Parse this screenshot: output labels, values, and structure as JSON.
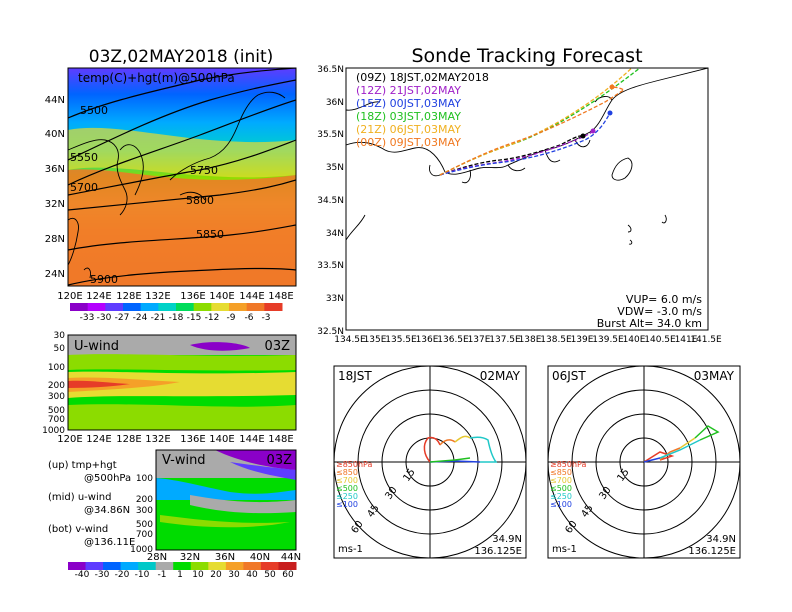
{
  "left_panel": {
    "title": "03Z,02MAY2018 (init)",
    "map_label": "temp(C)+hgt(m)@500hPa",
    "lat_labels": [
      "44N",
      "40N",
      "36N",
      "32N",
      "28N",
      "24N"
    ],
    "lon_labels": [
      "120E",
      "124E",
      "128E",
      "132E",
      "136E",
      "140E",
      "144E",
      "148E"
    ],
    "contour_labels": [
      "5500",
      "5550",
      "5700",
      "5750",
      "5800",
      "5850",
      "5900"
    ],
    "colorbar_labels": [
      "-33",
      "-30",
      "-27",
      "-24",
      "-21",
      "-18",
      "-15",
      "-12",
      "-9",
      "-6",
      "-3"
    ],
    "colorbar_colors": [
      "#8a00c8",
      "#b400ff",
      "#5f3cff",
      "#0064ff",
      "#00aaff",
      "#00d2c8",
      "#00dc5a",
      "#8cdc00",
      "#e6dc32",
      "#f5a028",
      "#f07828",
      "#e63c28"
    ]
  },
  "uwind": {
    "label": "U-wind",
    "time": "03Z",
    "p_labels": [
      "30",
      "50",
      "100",
      "200",
      "300",
      "500",
      "700",
      "1000"
    ],
    "lon_labels": [
      "120E",
      "124E",
      "128E",
      "132E",
      "136E",
      "140E",
      "144E",
      "148E"
    ]
  },
  "vwind": {
    "label": "V-wind",
    "time": "03Z",
    "p_labels": [
      "100",
      "200",
      "300",
      "500",
      "700",
      "1000"
    ],
    "lat_labels": [
      "28N",
      "32N",
      "36N",
      "40N",
      "44N"
    ]
  },
  "legend_text": {
    "up": "(up)  tmp+hgt",
    "up2": "@500hPa",
    "mid": "(mid)  u-wind",
    "mid2": "@34.86N",
    "bot": "(bot)  v-wind",
    "bot2": "@136.11E"
  },
  "wind_colorbar": {
    "labels": [
      "-40",
      "-30",
      "-20",
      "-10",
      "-1",
      "1",
      "10",
      "20",
      "30",
      "40",
      "50",
      "60"
    ],
    "colors": [
      "#8a00c8",
      "#5f3cff",
      "#0064ff",
      "#00aaff",
      "#00c8c8",
      "#aaaaaa",
      "#00dc00",
      "#8cdc00",
      "#e6dc32",
      "#f5a028",
      "#f07828",
      "#e63c28",
      "#c81e1e"
    ]
  },
  "track_panel": {
    "title": "Sonde Tracking Forecast",
    "lat_labels": [
      "36.5N",
      "36N",
      "35.5N",
      "35N",
      "34.5N",
      "34N",
      "33.5N",
      "33N",
      "32.5N"
    ],
    "lon_labels": [
      "134.5E",
      "135E",
      "135.5E",
      "136E",
      "136.5E",
      "137E",
      "137.5E",
      "138E",
      "138.5E",
      "139E",
      "139.5E",
      "140E",
      "140.5E",
      "141E",
      "141.5E"
    ],
    "legend": [
      {
        "text": "(09Z)  18JST,02MAY2018",
        "color": "#000000"
      },
      {
        "text": "(12Z)  21JST,02MAY",
        "color": "#a020c8"
      },
      {
        "text": "(15Z)  00JST,03MAY",
        "color": "#2040e0"
      },
      {
        "text": "(18Z)  03JST,03MAY",
        "color": "#20c020"
      },
      {
        "text": "(21Z)  06JST,03MAY",
        "color": "#f0b020"
      },
      {
        "text": "(00Z)  09JST,03MAY",
        "color": "#f07820"
      }
    ],
    "vup": "VUP=  6.0 m/s",
    "vdw": "VDW= -3.0 m/s",
    "burst": "Burst Alt= 34.0 km"
  },
  "hodo_left": {
    "time": "18JST",
    "date": "02MAY",
    "rings": [
      "15",
      "30",
      "45",
      "60"
    ],
    "legend": [
      "≥850hPa",
      "≤850",
      "≤700",
      "≤500",
      "≤250",
      "≤100"
    ],
    "legend_colors": [
      "#e63c28",
      "#f07828",
      "#e6c832",
      "#20c020",
      "#20c8c8",
      "#2040e0"
    ],
    "unit": "ms-1",
    "lat": "34.9N",
    "lon": "136.125E"
  },
  "hodo_right": {
    "time": "06JST",
    "date": "03MAY",
    "rings": [
      "15",
      "30",
      "45",
      "60"
    ],
    "legend": [
      "≥850hPa",
      "≤850",
      "≤700",
      "≤500",
      "≤250",
      "≤100"
    ],
    "legend_colors": [
      "#e63c28",
      "#f07828",
      "#e6c832",
      "#20c020",
      "#20c8c8",
      "#2040e0"
    ],
    "unit": "ms-1",
    "lat": "34.9N",
    "lon": "136.125E"
  }
}
